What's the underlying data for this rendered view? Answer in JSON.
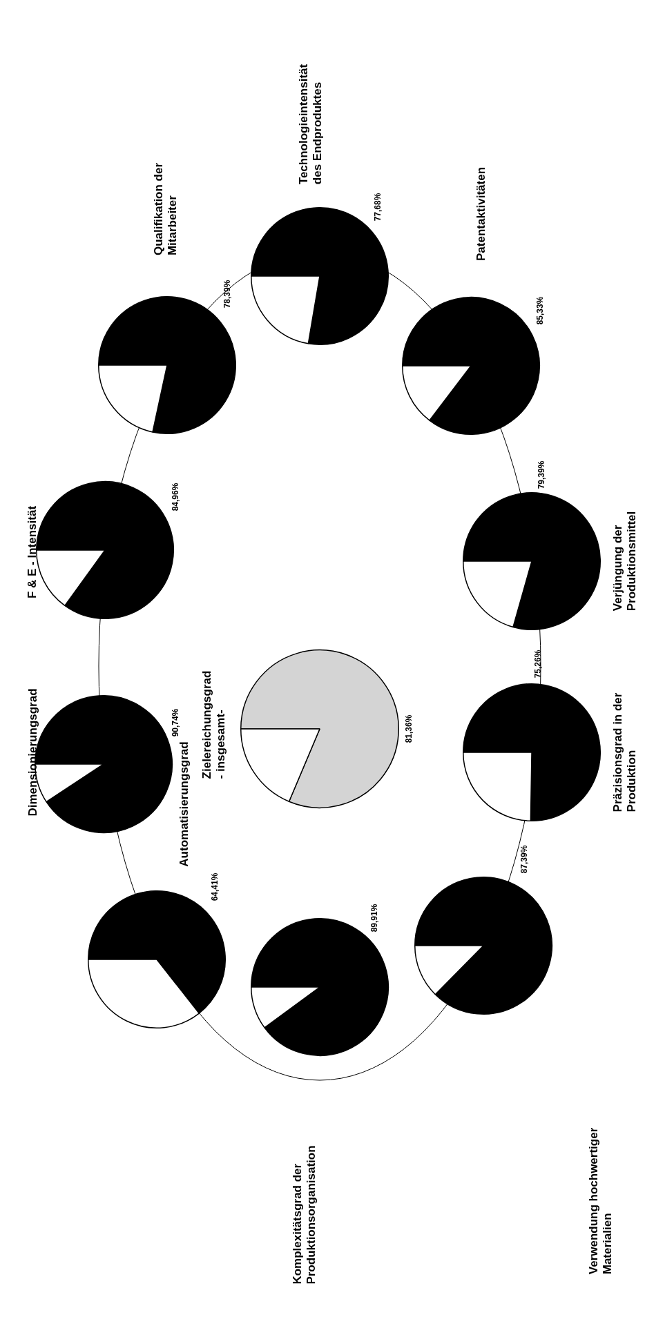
{
  "chart_data": [
    {
      "type": "pie",
      "title": "Automatisierungsgrad",
      "categories": [
        null,
        null
      ],
      "values": [
        64.41,
        35.59
      ],
      "colors": [
        "#000000",
        "#ffffff"
      ],
      "value_labels": [
        "64,41%",
        null
      ]
    },
    {
      "type": "pie",
      "title": "Dimensionierungsgrad",
      "categories": [
        null,
        null
      ],
      "values": [
        90.74,
        9.26
      ],
      "colors": [
        "#000000",
        "#ffffff"
      ],
      "value_labels": [
        "90,74%",
        null
      ]
    },
    {
      "type": "pie",
      "title": "F & E - Intensität",
      "categories": [
        null,
        null
      ],
      "values": [
        84.96,
        15.04
      ],
      "colors": [
        "#000000",
        "#ffffff"
      ],
      "value_labels": [
        "84,96%",
        null
      ]
    },
    {
      "type": "pie",
      "title": "Qualifikation der\nMitarbeiter",
      "categories": [
        null,
        null
      ],
      "values": [
        78.39,
        21.61
      ],
      "colors": [
        "#000000",
        "#ffffff"
      ],
      "value_labels": [
        "78,39%",
        null
      ]
    },
    {
      "type": "pie",
      "title": "Komplexitätsgrad der\nProduktionsorganisation",
      "categories": [
        null,
        null
      ],
      "values": [
        89.91,
        10.09
      ],
      "colors": [
        "#000000",
        "#ffffff"
      ],
      "value_labels": [
        "89,91%",
        null
      ]
    },
    {
      "type": "pie",
      "title": "Zielereichungsgrad\n- insgesamt-",
      "categories": [
        null,
        null
      ],
      "values": [
        81.36,
        18.64
      ],
      "colors": [
        "#d4d4d4",
        "#ffffff"
      ],
      "value_labels": [
        "81,36%",
        null
      ]
    },
    {
      "type": "pie",
      "title": "Technologieintensität\ndes Endproduktes",
      "categories": [
        null,
        null
      ],
      "values": [
        77.68,
        22.32
      ],
      "colors": [
        "#000000",
        "#ffffff"
      ],
      "value_labels": [
        "77,68%",
        null
      ]
    },
    {
      "type": "pie",
      "title": "Verwendung hochwertiger\nMaterialien",
      "categories": [
        null,
        null
      ],
      "values": [
        87.39,
        12.61
      ],
      "colors": [
        "#000000",
        "#ffffff"
      ],
      "value_labels": [
        "87,39%",
        null
      ]
    },
    {
      "type": "pie",
      "title": "Präzisionsgrad in der\nProduktion",
      "categories": [
        null,
        null
      ],
      "values": [
        75.26,
        24.74
      ],
      "colors": [
        "#000000",
        "#ffffff"
      ],
      "value_labels": [
        "75,26%",
        null
      ]
    },
    {
      "type": "pie",
      "title": "Verjüngung der\nProduktionsmittel",
      "categories": [
        null,
        null
      ],
      "values": [
        79.39,
        20.61
      ],
      "colors": [
        "#000000",
        "#ffffff"
      ],
      "value_labels": [
        "79,39%",
        null
      ]
    },
    {
      "type": "pie",
      "title": "Patentaktivitäten",
      "categories": [
        null,
        null
      ],
      "values": [
        85.33,
        14.67
      ],
      "colors": [
        "#000000",
        "#ffffff"
      ],
      "value_labels": [
        "85,33%",
        null
      ]
    }
  ]
}
